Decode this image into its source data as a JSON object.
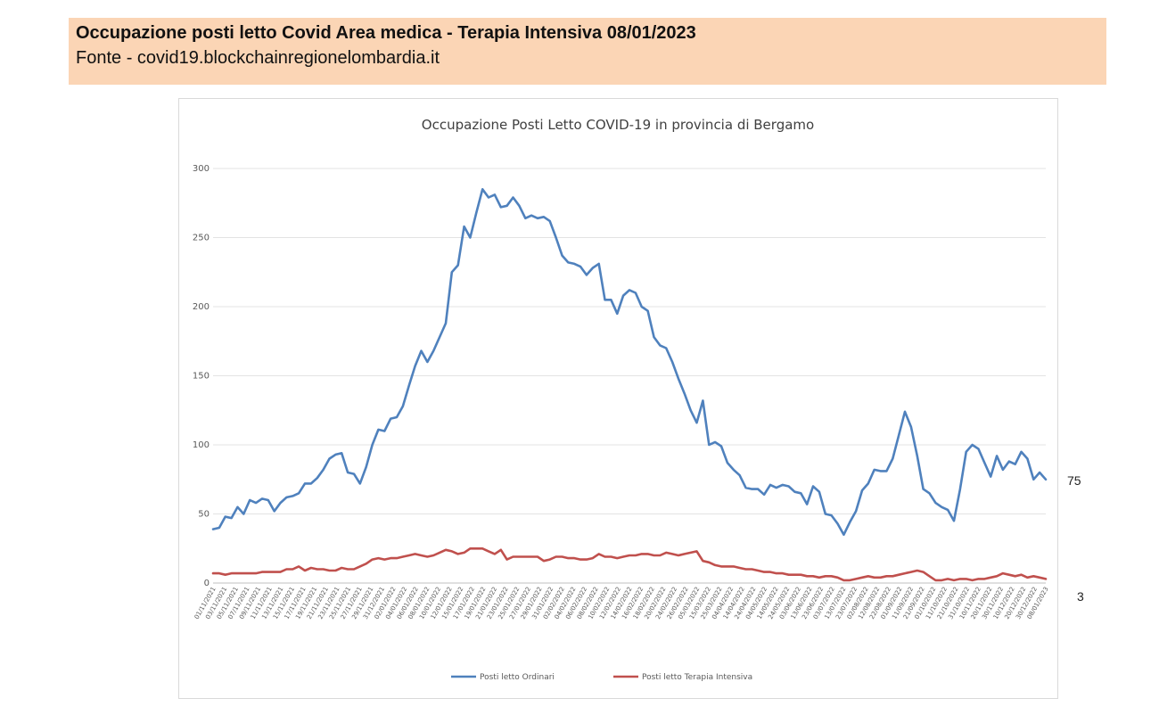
{
  "banner": {
    "title": "Occupazione posti letto Covid Area medica - Terapia Intensiva 08/01/2023",
    "source": "Fonte - covid19.blockchainregionelombardia.it"
  },
  "end_labels": {
    "ordinari": "75",
    "terapia": "3"
  },
  "chart_data": {
    "type": "line",
    "title": "Occupazione Posti Letto COVID-19 in provincia di Bergamo",
    "xlabel": "",
    "ylabel": "",
    "ylim": [
      0,
      300
    ],
    "yticks": [
      0,
      50,
      100,
      150,
      200,
      250,
      300
    ],
    "grid": true,
    "legend_position": "bottom",
    "x_tick_labels": [
      "01/11/2021",
      "03/11/2021",
      "05/11/2021",
      "07/11/2021",
      "09/11/2021",
      "11/11/2021",
      "13/11/2021",
      "15/11/2021",
      "17/11/2021",
      "19/11/2021",
      "21/11/2021",
      "23/11/2021",
      "25/11/2021",
      "27/11/2021",
      "29/11/2021",
      "31/12/2021",
      "02/01/2022",
      "04/01/2022",
      "06/01/2022",
      "08/01/2022",
      "10/01/2022",
      "12/01/2022",
      "15/01/2022",
      "17/01/2022",
      "19/01/2022",
      "21/01/2022",
      "23/01/2022",
      "25/01/2022",
      "27/01/2022",
      "29/01/2022",
      "31/01/2022",
      "02/02/2022",
      "04/02/2022",
      "06/02/2022",
      "08/02/2022",
      "10/02/2022",
      "12/02/2022",
      "14/02/2022",
      "16/02/2022",
      "18/02/2022",
      "20/02/2022",
      "24/02/2022",
      "26/02/2022",
      "05/03/2022",
      "15/03/2022",
      "25/03/2022",
      "04/04/2022",
      "14/04/2022",
      "24/04/2022",
      "04/05/2022",
      "14/05/2022",
      "24/05/2022",
      "03/06/2022",
      "13/06/2022",
      "23/06/2022",
      "03/07/2022",
      "13/07/2022",
      "23/07/2022",
      "02/08/2022",
      "12/08/2022",
      "22/08/2022",
      "01/09/2022",
      "11/09/2022",
      "21/09/2022",
      "01/10/2022",
      "11/10/2022",
      "21/10/2022",
      "31/10/2022",
      "10/11/2022",
      "20/11/2022",
      "30/11/2022",
      "10/12/2022",
      "20/12/2022",
      "30/12/2022",
      "08/01/2023"
    ],
    "series": [
      {
        "name": "Posti letto Ordinari",
        "color": "#4f81bd",
        "values": [
          39,
          40,
          48,
          47,
          55,
          50,
          60,
          58,
          61,
          60,
          52,
          58,
          62,
          63,
          65,
          72,
          72,
          76,
          82,
          90,
          93,
          94,
          80,
          79,
          72,
          84,
          100,
          111,
          110,
          119,
          120,
          128,
          143,
          157,
          168,
          160,
          168,
          178,
          188,
          225,
          230,
          258,
          250,
          268,
          285,
          279,
          281,
          272,
          273,
          279,
          273,
          264,
          266,
          264,
          265,
          262,
          250,
          237,
          232,
          231,
          229,
          223,
          228,
          231,
          205,
          205,
          195,
          208,
          212,
          210,
          200,
          197,
          178,
          172,
          170,
          160,
          148,
          137,
          125,
          116,
          132,
          100,
          102,
          99,
          87,
          82,
          78,
          69,
          68,
          68,
          64,
          71,
          69,
          71,
          70,
          66,
          65,
          57,
          70,
          66,
          50,
          49,
          43,
          35,
          44,
          52,
          67,
          72,
          82,
          81,
          81,
          90,
          107,
          124,
          113,
          92,
          68,
          65,
          58,
          55,
          53,
          45,
          68,
          95,
          100,
          97,
          87,
          77,
          92,
          82,
          88,
          86,
          95,
          90,
          75,
          80,
          75
        ]
      },
      {
        "name": "Posti letto Terapia Intensiva",
        "color": "#c0504d",
        "values": [
          7,
          7,
          6,
          7,
          7,
          7,
          7,
          7,
          8,
          8,
          8,
          8,
          10,
          10,
          12,
          9,
          11,
          10,
          10,
          9,
          9,
          11,
          10,
          10,
          12,
          14,
          17,
          18,
          17,
          18,
          18,
          19,
          20,
          21,
          20,
          19,
          20,
          22,
          24,
          23,
          21,
          22,
          25,
          25,
          25,
          23,
          21,
          24,
          17,
          19,
          19,
          19,
          19,
          19,
          16,
          17,
          19,
          19,
          18,
          18,
          17,
          17,
          18,
          21,
          19,
          19,
          18,
          19,
          20,
          20,
          21,
          21,
          20,
          20,
          22,
          21,
          20,
          21,
          22,
          23,
          16,
          15,
          13,
          12,
          12,
          12,
          11,
          10,
          10,
          9,
          8,
          8,
          7,
          7,
          6,
          6,
          6,
          5,
          5,
          4,
          5,
          5,
          4,
          2,
          2,
          3,
          4,
          5,
          4,
          4,
          5,
          5,
          6,
          7,
          8,
          9,
          8,
          5,
          2,
          2,
          3,
          2,
          3,
          3,
          2,
          3,
          3,
          4,
          5,
          7,
          6,
          5,
          6,
          4,
          5,
          4,
          3
        ]
      }
    ]
  }
}
